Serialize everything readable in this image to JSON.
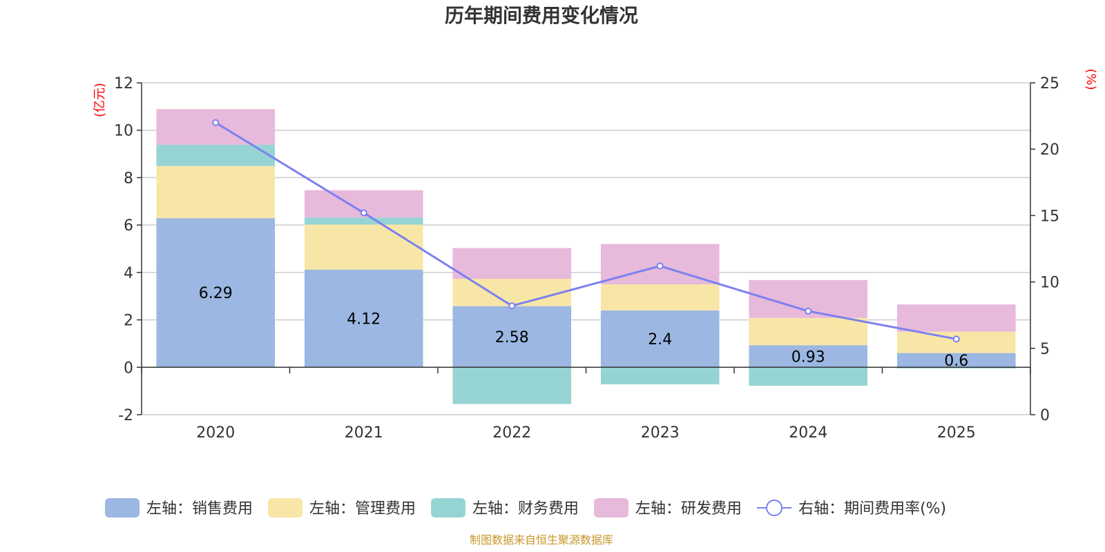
{
  "title": "历年期间费用变化情况",
  "source": "制图数据来自恒生聚源数据库",
  "colors": {
    "sales": "#9bb7e2",
    "admin": "#f8e6a7",
    "finance": "#96d4d4",
    "rd": "#e7b9da",
    "line": "#7a80f0",
    "unit": "#ff0000",
    "source": "#c8962a",
    "grid": "#cccccc",
    "axis": "#333333"
  },
  "chart_data": {
    "type": "bar",
    "stacked": true,
    "categories": [
      "2020",
      "2021",
      "2022",
      "2023",
      "2024",
      "2025"
    ],
    "series": [
      {
        "key": "sales",
        "name": "左轴：销售费用",
        "axis": "left",
        "values": [
          6.29,
          4.12,
          2.58,
          2.4,
          0.93,
          0.6
        ]
      },
      {
        "key": "admin",
        "name": "左轴：管理费用",
        "axis": "left",
        "values": [
          2.2,
          1.9,
          1.15,
          1.1,
          1.15,
          0.9
        ]
      },
      {
        "key": "finance",
        "name": "左轴：财务费用",
        "axis": "left",
        "values": [
          0.9,
          0.3,
          -1.55,
          -0.72,
          -0.78,
          -0.05
        ]
      },
      {
        "key": "rd",
        "name": "左轴：研发费用",
        "axis": "left",
        "values": [
          1.5,
          1.15,
          1.3,
          1.7,
          1.6,
          1.15
        ]
      }
    ],
    "line": {
      "key": "rate",
      "name": "右轴：期间费用率(%)",
      "axis": "right",
      "values": [
        22,
        15.2,
        8.2,
        11.2,
        7.8,
        5.7
      ]
    },
    "data_labels": [
      "6.29",
      "4.12",
      "2.58",
      "2.4",
      "0.93",
      "0.6"
    ],
    "left_axis": {
      "unit": "(亿元)",
      "min": -2,
      "max": 12,
      "ticks": [
        -2,
        0,
        2,
        4,
        6,
        8,
        10,
        12
      ]
    },
    "right_axis": {
      "unit": "(%)",
      "min": 0,
      "max": 25,
      "ticks": [
        0,
        5,
        10,
        15,
        20,
        25
      ]
    },
    "grid": true,
    "legend_position": "bottom"
  }
}
